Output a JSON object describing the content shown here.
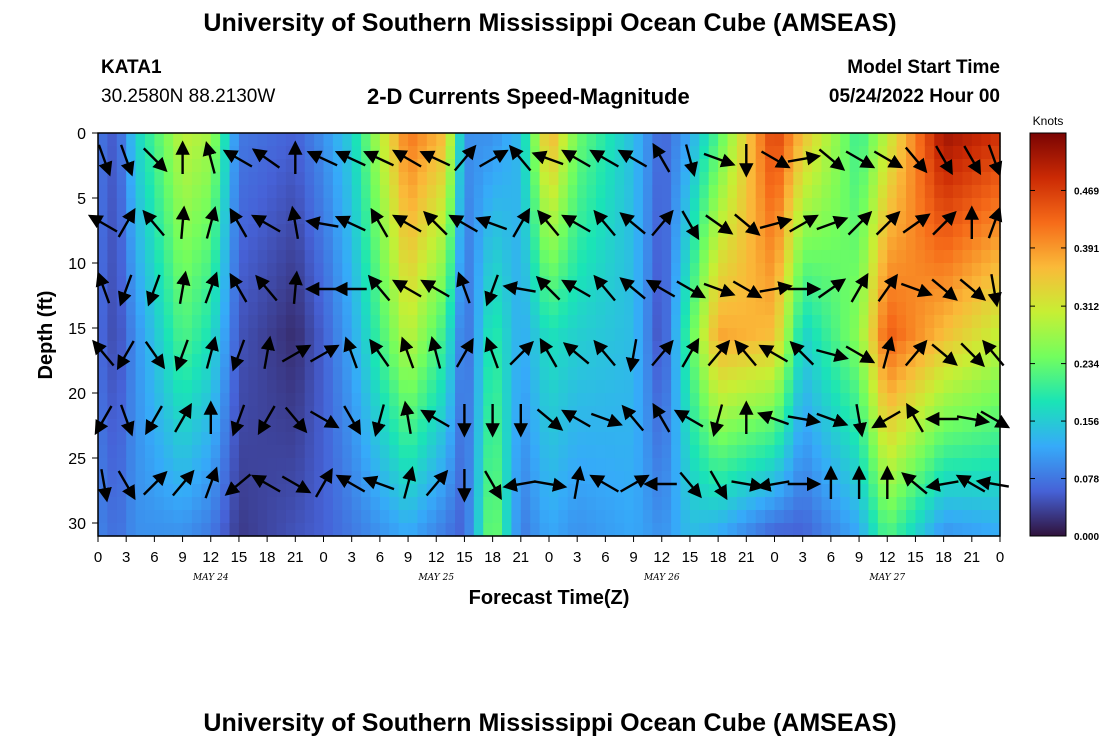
{
  "header": {
    "title": "University of Southern Mississippi Ocean Cube (AMSEAS)",
    "station_id": "KATA1",
    "coordinates": "30.2580N  88.2130W",
    "product": "2-D Currents Speed-Magnitude",
    "model_start_label": "Model Start Time",
    "model_start_value": "05/24/2022 Hour 00"
  },
  "footer": {
    "title": "University of Southern Mississippi Ocean Cube (AMSEAS)"
  },
  "colors": {
    "colormap": [
      "#30123b",
      "#4662d7",
      "#36aaf9",
      "#1ae4b6",
      "#72fe5e",
      "#c7ef34",
      "#faba39",
      "#f66b19",
      "#cb2a04",
      "#7a0403"
    ]
  },
  "chart_data": {
    "type": "heatmap",
    "title": "2-D Currents Speed-Magnitude",
    "xlabel": "Forecast Time(Z)",
    "ylabel": "Depth (ft)",
    "x_tick_labels": [
      "0",
      "3",
      "6",
      "9",
      "12",
      "15",
      "18",
      "21",
      "0",
      "3",
      "6",
      "9",
      "12",
      "15",
      "18",
      "21",
      "0",
      "3",
      "6",
      "9",
      "12",
      "15",
      "18",
      "21",
      "0",
      "3",
      "6",
      "9",
      "12",
      "15",
      "18",
      "21",
      "0"
    ],
    "x_range_hours": [
      0,
      96
    ],
    "date_labels": [
      {
        "label": "MAY 24",
        "hour": 12
      },
      {
        "label": "MAY 25",
        "hour": 36
      },
      {
        "label": "MAY 26",
        "hour": 60
      },
      {
        "label": "MAY 27",
        "hour": 84
      }
    ],
    "y_ticks": [
      0,
      5,
      10,
      15,
      20,
      25,
      30
    ],
    "y_range": [
      0,
      31
    ],
    "y_inverted": true,
    "colorbar": {
      "unit": "Knots",
      "range": [
        0.0,
        0.547
      ],
      "ticks": [
        "0.469",
        "0.391",
        "0.312",
        "0.234",
        "0.156",
        "0.078",
        "0.000"
      ]
    },
    "speed_profile_approx": [
      {
        "hour": 0,
        "surface": 0.08,
        "mid": 0.07,
        "bottom": 0.09
      },
      {
        "hour": 2,
        "surface": 0.05,
        "mid": 0.04,
        "bottom": 0.07
      },
      {
        "hour": 4,
        "surface": 0.16,
        "mid": 0.1,
        "bottom": 0.1
      },
      {
        "hour": 9,
        "surface": 0.3,
        "mid": 0.22,
        "bottom": 0.1
      },
      {
        "hour": 12,
        "surface": 0.28,
        "mid": 0.18,
        "bottom": 0.08
      },
      {
        "hour": 15,
        "surface": 0.08,
        "mid": 0.05,
        "bottom": 0.03
      },
      {
        "hour": 21,
        "surface": 0.06,
        "mid": 0.02,
        "bottom": 0.05
      },
      {
        "hour": 24,
        "surface": 0.1,
        "mid": 0.06,
        "bottom": 0.06
      },
      {
        "hour": 27,
        "surface": 0.16,
        "mid": 0.12,
        "bottom": 0.08
      },
      {
        "hour": 33,
        "surface": 0.42,
        "mid": 0.3,
        "bottom": 0.12
      },
      {
        "hour": 37,
        "surface": 0.36,
        "mid": 0.2,
        "bottom": 0.08
      },
      {
        "hour": 39,
        "surface": 0.1,
        "mid": 0.06,
        "bottom": 0.06
      },
      {
        "hour": 42,
        "surface": 0.1,
        "mid": 0.2,
        "bottom": 0.26
      },
      {
        "hour": 45,
        "surface": 0.14,
        "mid": 0.12,
        "bottom": 0.08
      },
      {
        "hour": 48,
        "surface": 0.38,
        "mid": 0.18,
        "bottom": 0.12
      },
      {
        "hour": 51,
        "surface": 0.24,
        "mid": 0.16,
        "bottom": 0.1
      },
      {
        "hour": 57,
        "surface": 0.14,
        "mid": 0.14,
        "bottom": 0.12
      },
      {
        "hour": 60,
        "surface": 0.06,
        "mid": 0.04,
        "bottom": 0.1
      },
      {
        "hour": 63,
        "surface": 0.12,
        "mid": 0.22,
        "bottom": 0.14
      },
      {
        "hour": 66,
        "surface": 0.22,
        "mid": 0.38,
        "bottom": 0.12
      },
      {
        "hour": 72,
        "surface": 0.47,
        "mid": 0.36,
        "bottom": 0.06
      },
      {
        "hour": 75,
        "surface": 0.36,
        "mid": 0.16,
        "bottom": 0.06
      },
      {
        "hour": 81,
        "surface": 0.2,
        "mid": 0.26,
        "bottom": 0.12
      },
      {
        "hour": 84,
        "surface": 0.3,
        "mid": 0.44,
        "bottom": 0.22
      },
      {
        "hour": 90,
        "surface": 0.52,
        "mid": 0.36,
        "bottom": 0.1
      },
      {
        "hour": 96,
        "surface": 0.48,
        "mid": 0.3,
        "bottom": 0.12
      }
    ],
    "vectors": {
      "depths_ft": [
        2,
        7,
        12,
        17,
        22,
        27
      ],
      "hours": [
        0,
        3,
        6,
        9,
        12,
        15,
        18,
        21,
        24,
        27,
        30,
        33,
        36,
        39,
        42,
        45,
        48,
        51,
        54,
        57,
        60,
        63,
        66,
        69,
        72,
        75,
        78,
        81,
        84,
        87,
        90,
        93,
        96
      ],
      "direction_deg_approx": [
        [
          160,
          160,
          135,
          0,
          345,
          300,
          305,
          0,
          295,
          295,
          295,
          300,
          295,
          40,
          60,
          320,
          290,
          300,
          300,
          300,
          330,
          165,
          110,
          180,
          120,
          80,
          130,
          120,
          120,
          140,
          150,
          150,
          160
        ],
        [
          300,
          30,
          320,
          5,
          15,
          330,
          300,
          350,
          280,
          295,
          330,
          300,
          315,
          300,
          290,
          30,
          320,
          300,
          320,
          310,
          40,
          150,
          125,
          130,
          75,
          60,
          70,
          45,
          45,
          55,
          45,
          0,
          20
        ],
        [
          340,
          200,
          200,
          10,
          20,
          330,
          320,
          5,
          270,
          270,
          320,
          300,
          300,
          340,
          200,
          280,
          315,
          300,
          320,
          310,
          300,
          120,
          110,
          120,
          80,
          90,
          55,
          30,
          35,
          110,
          130,
          130,
          170
        ],
        [
          320,
          210,
          145,
          200,
          15,
          200,
          10,
          60,
          60,
          340,
          325,
          340,
          345,
          30,
          340,
          45,
          330,
          310,
          320,
          190,
          40,
          30,
          40,
          320,
          300,
          315,
          105,
          120,
          15,
          40,
          130,
          135,
          320
        ],
        [
          210,
          160,
          210,
          30,
          0,
          200,
          210,
          140,
          120,
          150,
          195,
          350,
          300,
          180,
          180,
          180,
          130,
          300,
          110,
          320,
          330,
          300,
          195,
          0,
          290,
          100,
          110,
          170,
          240,
          330,
          270,
          100,
          120
        ],
        [
          170,
          150,
          45,
          40,
          20,
          230,
          300,
          120,
          30,
          300,
          290,
          15,
          40,
          180,
          150,
          260,
          100,
          10,
          300,
          60,
          270,
          140,
          150,
          100,
          260,
          90,
          0,
          0,
          0,
          310,
          260,
          300,
          280
        ]
      ]
    }
  }
}
